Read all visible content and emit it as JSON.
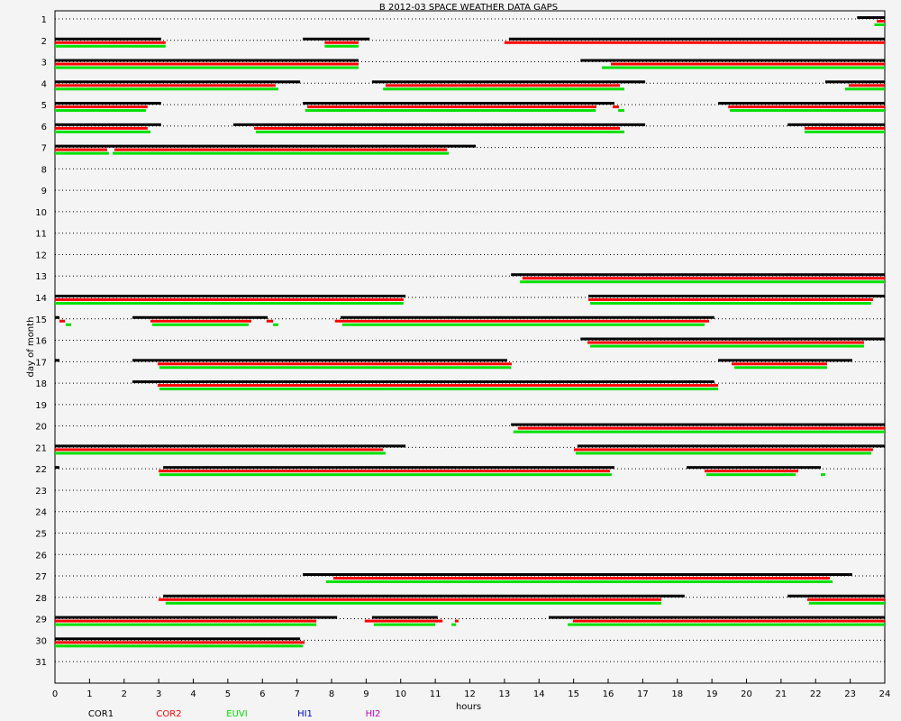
{
  "chart_data": {
    "type": "gantt",
    "title": "B  2012-03 SPACE WEATHER DATA GAPS",
    "x_label": "hours",
    "y_label": "day of month",
    "categories": [
      1,
      2,
      3,
      4,
      5,
      6,
      7,
      8,
      9,
      10,
      11,
      12,
      13,
      14,
      15,
      16,
      17,
      18,
      19,
      20,
      21,
      22,
      23,
      24,
      25,
      26,
      27,
      28,
      29,
      30,
      31
    ],
    "xlim": [
      0,
      24
    ],
    "xticks": [
      0,
      1,
      2,
      3,
      4,
      5,
      6,
      7,
      8,
      9,
      10,
      11,
      12,
      13,
      14,
      15,
      16,
      17,
      18,
      19,
      20,
      21,
      22,
      23,
      24
    ],
    "grid": true,
    "series": [
      {
        "name": "COR1",
        "color": "#000000",
        "segments": [
          [
            1,
            23.2,
            24
          ],
          [
            2,
            0,
            3.07
          ],
          [
            2,
            7.17,
            9.1
          ],
          [
            2,
            13.13,
            24
          ],
          [
            3,
            0,
            8.78
          ],
          [
            3,
            15.2,
            24
          ],
          [
            4,
            0,
            7.09
          ],
          [
            4,
            9.17,
            17.07
          ],
          [
            4,
            22.28,
            24
          ],
          [
            5,
            0,
            3.07
          ],
          [
            5,
            7.17,
            16.18
          ],
          [
            5,
            19.18,
            24
          ],
          [
            6,
            0,
            3.07
          ],
          [
            6,
            5.16,
            17.07
          ],
          [
            6,
            21.19,
            24
          ],
          [
            7,
            0,
            12.17
          ],
          [
            13,
            13.19,
            24
          ],
          [
            14,
            0,
            10.14
          ],
          [
            14,
            15.43,
            24
          ],
          [
            15,
            0,
            0.13
          ],
          [
            15,
            2.24,
            6.15
          ],
          [
            15,
            8.26,
            19.07
          ],
          [
            16,
            15.2,
            24
          ],
          [
            17,
            0,
            0.13
          ],
          [
            17,
            2.24,
            13.08
          ],
          [
            17,
            19.18,
            23.06
          ],
          [
            18,
            2.24,
            19.07
          ],
          [
            20,
            13.19,
            24
          ],
          [
            21,
            0,
            10.14
          ],
          [
            21,
            15.11,
            24
          ],
          [
            22,
            0,
            0.13
          ],
          [
            22,
            3.13,
            16.18
          ],
          [
            22,
            18.27,
            22.15
          ],
          [
            27,
            7.17,
            23.06
          ],
          [
            28,
            3.13,
            18.21
          ],
          [
            28,
            21.19,
            24
          ],
          [
            29,
            0,
            8.16
          ],
          [
            29,
            9.17,
            11.07
          ],
          [
            29,
            14.28,
            24
          ],
          [
            30,
            0,
            7.09
          ]
        ]
      },
      {
        "name": "COR2",
        "color": "#ff0000",
        "segments": [
          [
            1,
            23.77,
            24
          ],
          [
            2,
            0,
            3.2
          ],
          [
            2,
            7.8,
            8.78
          ],
          [
            2,
            13,
            24
          ],
          [
            3,
            0,
            8.78
          ],
          [
            3,
            16.08,
            24
          ],
          [
            4,
            0,
            6.38
          ],
          [
            4,
            9.56,
            16.34
          ],
          [
            4,
            22.96,
            24
          ],
          [
            5,
            0,
            2.68
          ],
          [
            5,
            7.3,
            15.66
          ],
          [
            5,
            16.13,
            16.31
          ],
          [
            5,
            19.47,
            24
          ],
          [
            6,
            0,
            2.68
          ],
          [
            6,
            5.76,
            16.34
          ],
          [
            6,
            21.68,
            24
          ],
          [
            7,
            0,
            1.51
          ],
          [
            7,
            1.72,
            11.34
          ],
          [
            13,
            13.52,
            24
          ],
          [
            14,
            0,
            10.08
          ],
          [
            14,
            15.43,
            23.66
          ],
          [
            15,
            0.13,
            0.29
          ],
          [
            15,
            2.76,
            5.68
          ],
          [
            15,
            6.12,
            6.31
          ],
          [
            15,
            8.1,
            18.92
          ],
          [
            16,
            15.4,
            23.4
          ],
          [
            17,
            2.97,
            13.21
          ],
          [
            17,
            19.57,
            22.33
          ],
          [
            18,
            2.97,
            19.18
          ],
          [
            20,
            13.39,
            24
          ],
          [
            21,
            0,
            9.49
          ],
          [
            21,
            15.01,
            23.66
          ],
          [
            22,
            3,
            16.05
          ],
          [
            22,
            18.79,
            21.5
          ],
          [
            27,
            8.05,
            22.41
          ],
          [
            28,
            3,
            17.54
          ],
          [
            28,
            21.76,
            24
          ],
          [
            29,
            0,
            7.56
          ],
          [
            29,
            8.96,
            11.21
          ],
          [
            29,
            11.57,
            11.67
          ],
          [
            29,
            14.98,
            24
          ],
          [
            30,
            0,
            7.22
          ]
        ]
      },
      {
        "name": "EUVI",
        "color": "#00e000",
        "segments": [
          [
            1,
            23.7,
            24
          ],
          [
            2,
            0,
            3.2
          ],
          [
            2,
            7.8,
            8.78
          ],
          [
            3,
            0,
            8.78
          ],
          [
            3,
            15.82,
            24
          ],
          [
            4,
            0,
            6.46
          ],
          [
            4,
            9.49,
            16.47
          ],
          [
            4,
            22.85,
            24
          ],
          [
            5,
            0,
            2.63
          ],
          [
            5,
            7.24,
            15.64
          ],
          [
            5,
            16.29,
            16.47
          ],
          [
            5,
            19.52,
            24
          ],
          [
            6,
            0,
            2.76
          ],
          [
            6,
            5.81,
            16.47
          ],
          [
            6,
            21.68,
            24
          ],
          [
            7,
            0,
            1.56
          ],
          [
            7,
            1.67,
            11.39
          ],
          [
            13,
            13.45,
            24
          ],
          [
            14,
            0,
            10.08
          ],
          [
            14,
            15.48,
            23.61
          ],
          [
            15,
            0.31,
            0.47
          ],
          [
            15,
            2.81,
            5.6
          ],
          [
            15,
            6.31,
            6.46
          ],
          [
            15,
            8.31,
            18.79
          ],
          [
            16,
            15.48,
            23.4
          ],
          [
            17,
            3.02,
            13.19
          ],
          [
            17,
            19.65,
            22.33
          ],
          [
            18,
            3.02,
            19.18
          ],
          [
            20,
            13.26,
            24
          ],
          [
            21,
            0,
            9.56
          ],
          [
            21,
            15.06,
            23.61
          ],
          [
            22,
            3.02,
            16.1
          ],
          [
            22,
            18.84,
            21.42
          ],
          [
            22,
            22.15,
            22.28
          ],
          [
            27,
            7.84,
            22.49
          ],
          [
            28,
            3.2,
            17.54
          ],
          [
            28,
            21.81,
            24
          ],
          [
            29,
            0,
            7.56
          ],
          [
            29,
            9.22,
            11
          ],
          [
            29,
            11.47,
            11.6
          ],
          [
            29,
            14.83,
            24
          ],
          [
            30,
            0,
            7.17
          ]
        ]
      },
      {
        "name": "HI1",
        "color": "#0000cc",
        "segments": []
      },
      {
        "name": "HI2",
        "color": "#cc00cc",
        "segments": []
      }
    ]
  }
}
